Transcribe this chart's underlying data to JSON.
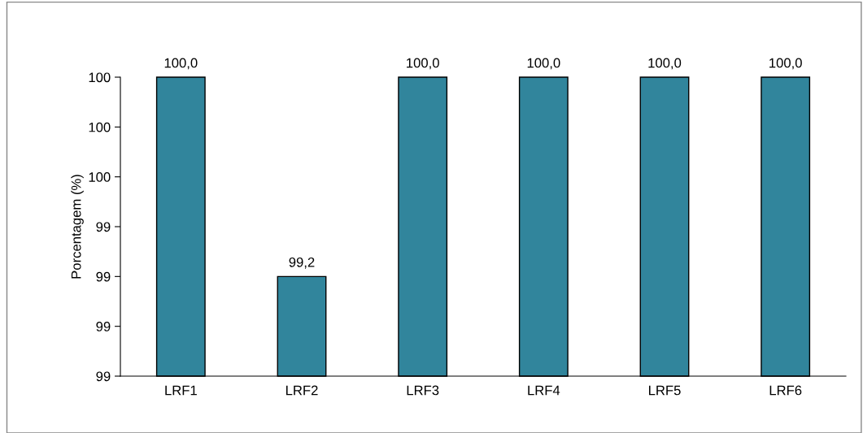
{
  "chart_data": {
    "type": "bar",
    "ylabel": "Porcentagem (%)",
    "categories": [
      "LRF1",
      "LRF2",
      "LRF3",
      "LRF4",
      "LRF5",
      "LRF6"
    ],
    "values": [
      100.0,
      99.2,
      100.0,
      100.0,
      100.0,
      100.0
    ],
    "value_labels": [
      "100,0",
      "99,2",
      "100,0",
      "100,0",
      "100,0",
      "100,0"
    ],
    "color": "#31859c",
    "ylim": [
      98.8,
      100.0
    ],
    "yticks": [
      {
        "value": 98.8,
        "label": "99"
      },
      {
        "value": 99.0,
        "label": "99"
      },
      {
        "value": 99.2,
        "label": "99"
      },
      {
        "value": 99.4,
        "label": "99"
      },
      {
        "value": 99.6,
        "label": "100"
      },
      {
        "value": 99.8,
        "label": "100"
      },
      {
        "value": 100.0,
        "label": "100"
      }
    ],
    "grid": false
  }
}
